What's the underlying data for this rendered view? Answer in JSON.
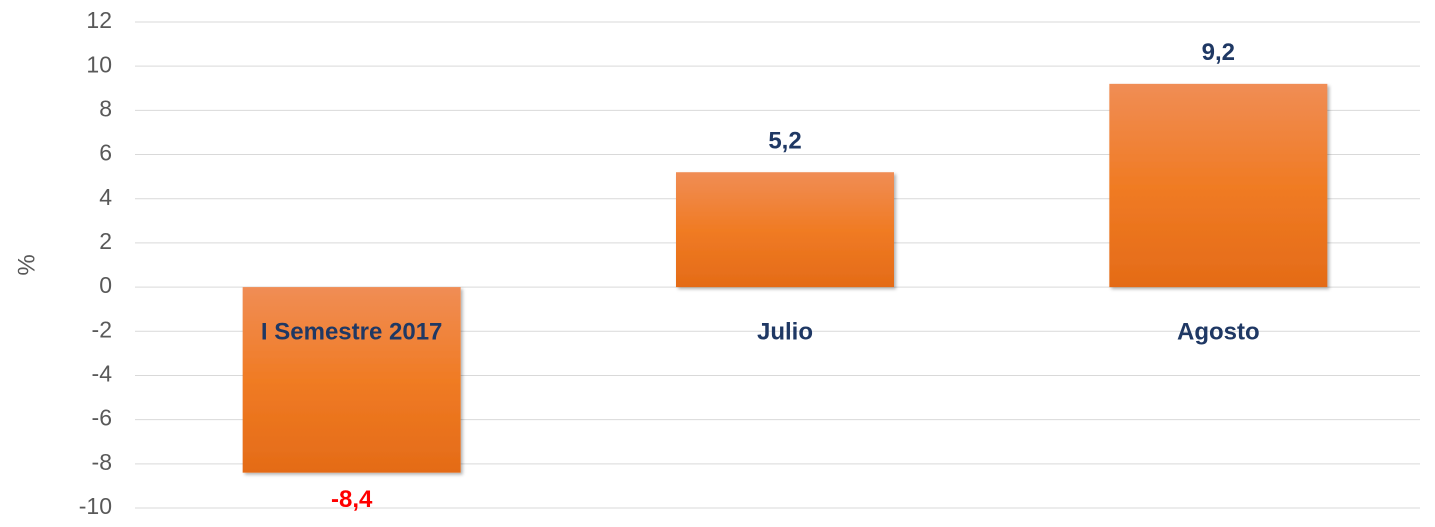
{
  "chart_data": {
    "type": "bar",
    "y_label": "%",
    "categories": [
      "I Semestre 2017",
      "Julio",
      "Agosto"
    ],
    "values": [
      -8.4,
      5.2,
      9.2
    ],
    "value_labels": [
      "-8,4",
      "5,2",
      "9,2"
    ],
    "color": "#ef7d2e",
    "positive_label_color": "#1f3864",
    "negative_label_color": "#ff0000",
    "ylim": [
      -10,
      12
    ],
    "yticks": [
      -10,
      -8,
      -6,
      -4,
      -2,
      0,
      2,
      4,
      6,
      8,
      10,
      12
    ],
    "grid": true
  }
}
